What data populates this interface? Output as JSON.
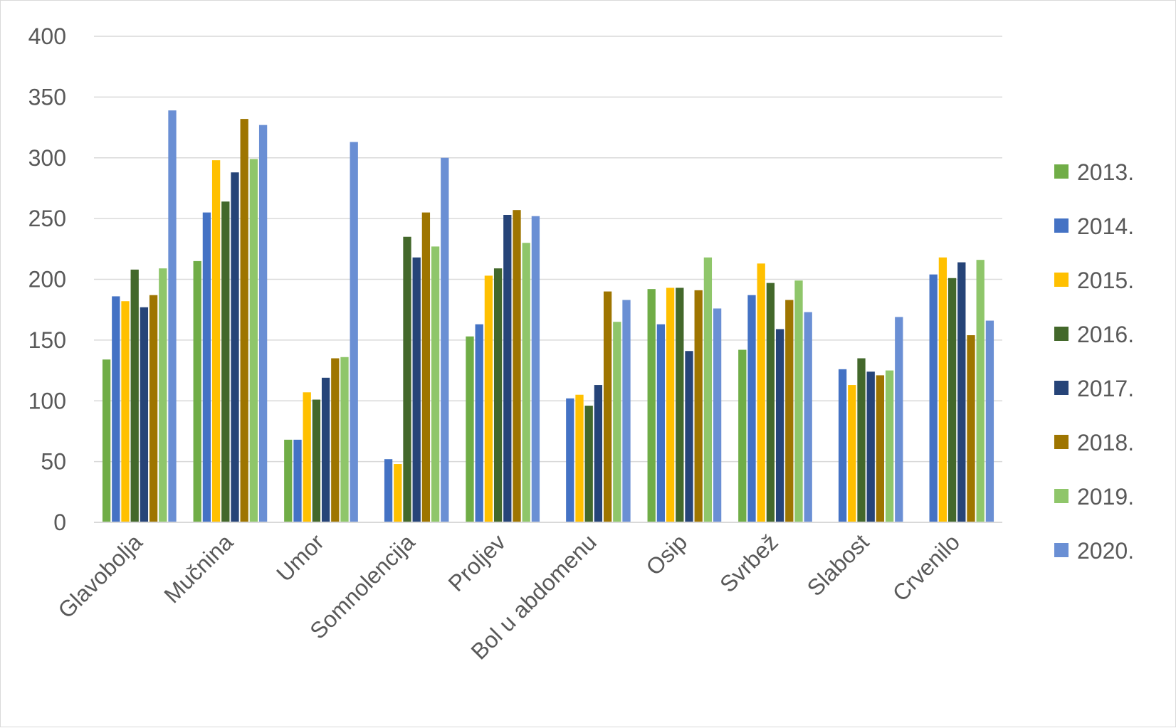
{
  "chart_data": {
    "type": "bar",
    "title": "",
    "xlabel": "",
    "ylabel": "",
    "ylim": [
      0,
      400
    ],
    "yticks": [
      0,
      50,
      100,
      150,
      200,
      250,
      300,
      350,
      400
    ],
    "grid": true,
    "legend_position": "right",
    "categories": [
      "Glavobolja",
      "Mučnina",
      "Umor",
      "Somnolencija",
      "Proljev",
      "Bol u abdomenu",
      "Osip",
      "Svrbež",
      "Slabost",
      "Crvenilo"
    ],
    "series": [
      {
        "name": "2013.",
        "color": "#70AD47",
        "values": [
          134,
          215,
          68,
          null,
          153,
          null,
          192,
          142,
          null,
          null
        ]
      },
      {
        "name": "2014.",
        "color": "#4472C4",
        "values": [
          186,
          255,
          68,
          52,
          163,
          102,
          163,
          187,
          126,
          204
        ]
      },
      {
        "name": "2015.",
        "color": "#FFC000",
        "values": [
          182,
          298,
          107,
          48,
          203,
          105,
          193,
          213,
          113,
          218
        ]
      },
      {
        "name": "2016.",
        "color": "#43682B",
        "values": [
          208,
          264,
          101,
          235,
          209,
          96,
          193,
          197,
          135,
          201
        ]
      },
      {
        "name": "2017.",
        "color": "#264478",
        "values": [
          177,
          288,
          119,
          218,
          253,
          113,
          141,
          159,
          124,
          214
        ]
      },
      {
        "name": "2018.",
        "color": "#9E7500",
        "values": [
          187,
          332,
          135,
          255,
          257,
          190,
          191,
          183,
          121,
          154
        ]
      },
      {
        "name": "2019.",
        "color": "#8FC66A",
        "values": [
          209,
          299,
          136,
          227,
          230,
          165,
          218,
          199,
          125,
          216
        ]
      },
      {
        "name": "2020.",
        "color": "#6A8FD4",
        "values": [
          339,
          327,
          313,
          300,
          252,
          183,
          176,
          173,
          169,
          166
        ]
      }
    ]
  }
}
